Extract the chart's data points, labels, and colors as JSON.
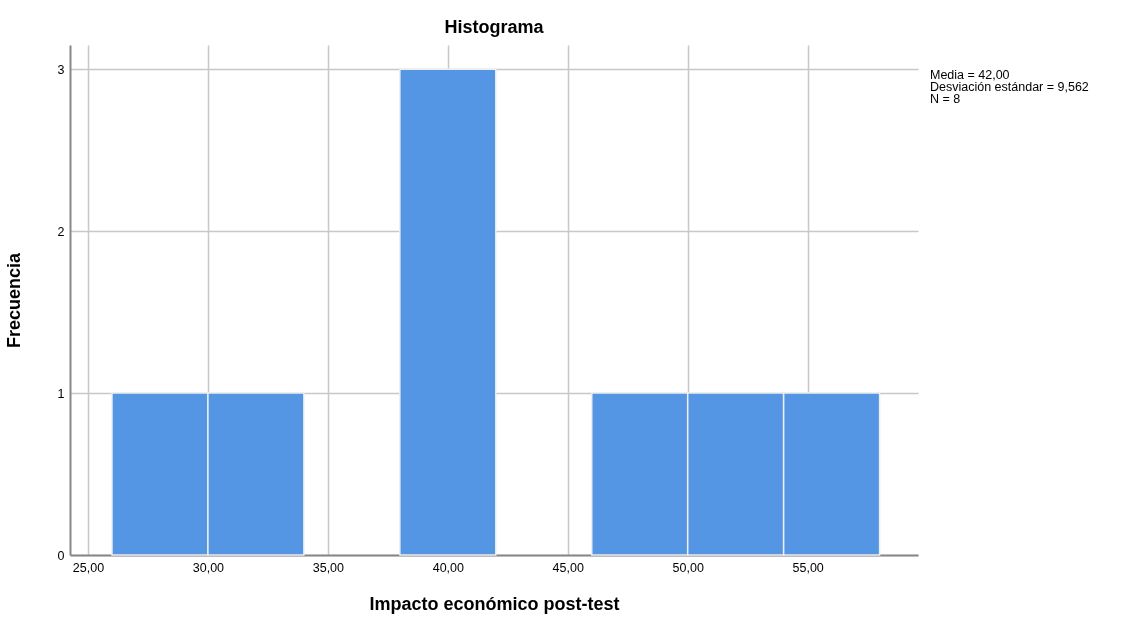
{
  "chart_data": {
    "type": "histogram",
    "title": "Histograma",
    "xlabel": "Impacto económico post-test",
    "ylabel": "Frecuencia",
    "bins": [
      26,
      30,
      34,
      38,
      42,
      46,
      50,
      54,
      58
    ],
    "values": [
      1,
      1,
      0,
      3,
      0,
      1,
      1,
      1
    ],
    "color": "#5596e4",
    "xlim": [
      24.25,
      59.6
    ],
    "ylim": [
      0,
      3.15
    ],
    "xticks": [
      {
        "value": 25,
        "label": "25,00"
      },
      {
        "value": 30,
        "label": "30,00"
      },
      {
        "value": 35,
        "label": "35,00"
      },
      {
        "value": 40,
        "label": "40,00"
      },
      {
        "value": 45,
        "label": "45,00"
      },
      {
        "value": 50,
        "label": "50,00"
      },
      {
        "value": 55,
        "label": "55,00"
      }
    ],
    "yticks": [
      0,
      1,
      2,
      3
    ],
    "grid": true,
    "annotations": [
      "Media = 42,00",
      "Desviación estándar = 9,562",
      "N = 8"
    ]
  }
}
